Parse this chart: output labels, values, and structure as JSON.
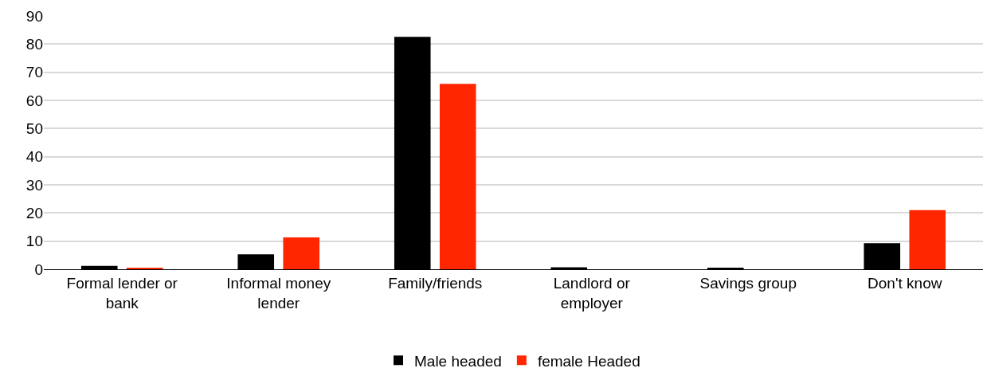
{
  "chart_data": {
    "type": "bar",
    "categories": [
      "Formal lender or bank",
      "Informal money lender",
      "Family/friends",
      "Landlord or employer",
      "Savings group",
      "Don't know"
    ],
    "series": [
      {
        "name": "Male headed",
        "color": "#000000",
        "values": [
          1.2,
          5.3,
          82.6,
          0.7,
          0.3,
          9.3
        ]
      },
      {
        "name": "female Headed",
        "color": "#ff2600",
        "values": [
          0.6,
          11.3,
          65.9,
          0,
          0,
          21
        ]
      }
    ],
    "ylim": [
      0,
      90
    ],
    "yticks": [
      0,
      10,
      20,
      30,
      40,
      50,
      60,
      70,
      80,
      90
    ],
    "grid": "y",
    "legend": "bottom"
  }
}
